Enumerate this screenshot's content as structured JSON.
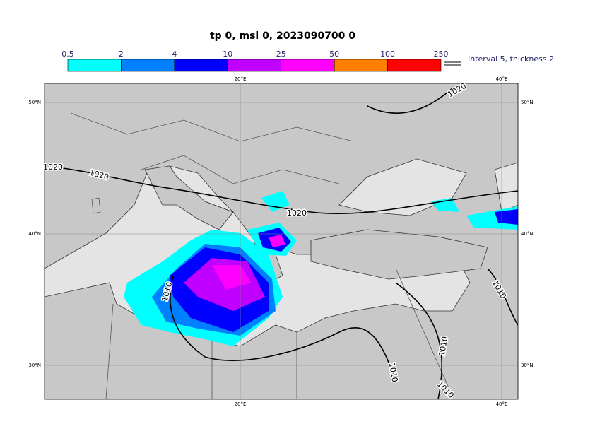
{
  "title": "tp 0, msl 0, 2023090700 0",
  "colorbar": {
    "ticks": [
      "0.5",
      "2",
      "4",
      "10",
      "25",
      "50",
      "100",
      "250"
    ],
    "colors": [
      "#00ffff",
      "#0080ff",
      "#0000ff",
      "#c000ff",
      "#ff00ff",
      "#ff8000",
      "#ff0000"
    ]
  },
  "contour_legend": "Interval 5, thickness 2",
  "lon_labels": [
    "20°E",
    "40°E"
  ],
  "lat_labels": [
    "50°N",
    "40°N",
    "30°N"
  ],
  "isobar_labels": [
    "1020",
    "1020",
    "1020",
    "1020",
    "1010",
    "1010",
    "1010",
    "1010",
    "1010"
  ]
}
